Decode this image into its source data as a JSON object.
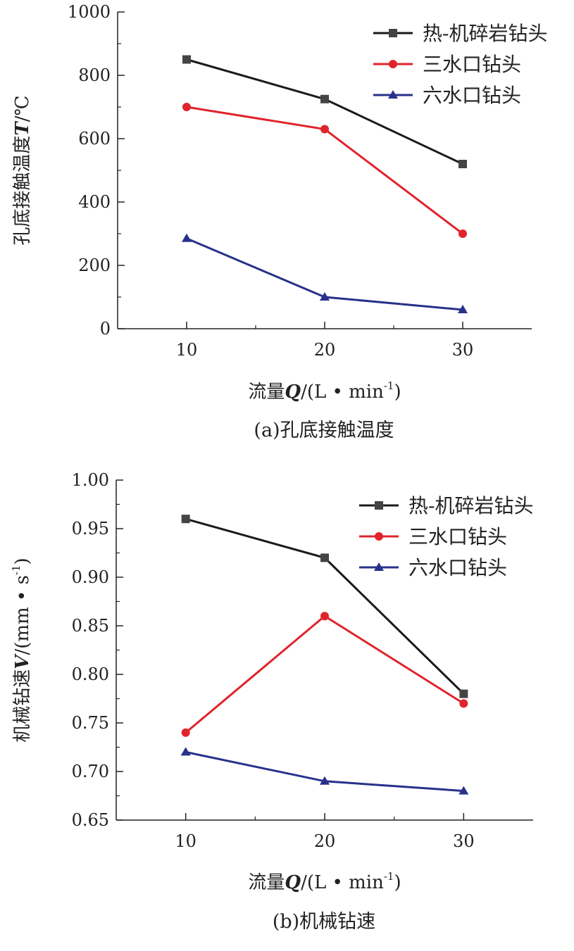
{
  "chart_data": [
    {
      "type": "line",
      "caption": "(a)孔底接触温度",
      "xlabel_prefix": "流量",
      "xlabel_var": "Q",
      "xlabel_unit": "/(L • min",
      "xlabel_exp": "-1",
      "xlabel_close": ")",
      "ylabel_prefix": "孔底接触温度",
      "ylabel_var": "T",
      "ylabel_unit": "/℃",
      "x": [
        10,
        20,
        30
      ],
      "xlim": [
        5,
        35
      ],
      "ylim": [
        0,
        1000
      ],
      "xticks": [
        "10",
        "20",
        "30"
      ],
      "yticks": [
        "0",
        "200",
        "400",
        "600",
        "800",
        "1000"
      ],
      "legend_position": "top-right",
      "series": [
        {
          "name": "热-机碎岩钻头",
          "values": [
            850,
            725,
            520
          ],
          "color": "#1a1a1a",
          "marker": "square"
        },
        {
          "name": "三水口钻头",
          "values": [
            700,
            630,
            300
          ],
          "color": "#e0242c",
          "marker": "circle"
        },
        {
          "name": "六水口钻头",
          "values": [
            285,
            100,
            60
          ],
          "color": "#28318a",
          "marker": "triangle"
        }
      ]
    },
    {
      "type": "line",
      "caption": "(b)机械钻速",
      "xlabel_prefix": "流量",
      "xlabel_var": "Q",
      "xlabel_unit": "/(L • min",
      "xlabel_exp": "-1",
      "xlabel_close": ")",
      "ylabel_prefix": "机械钻速",
      "ylabel_var": "V",
      "ylabel_unit": "/(mm • s",
      "ylabel_exp": "-1",
      "ylabel_close": ")",
      "x": [
        10,
        20,
        30
      ],
      "xlim": [
        5,
        35
      ],
      "ylim": [
        0.65,
        1.0
      ],
      "xticks": [
        "10",
        "20",
        "30"
      ],
      "yticks": [
        "0.65",
        "0.70",
        "0.75",
        "0.80",
        "0.85",
        "0.90",
        "0.95",
        "1.00"
      ],
      "legend_position": "top-right",
      "series": [
        {
          "name": "热-机碎岩钻头",
          "values": [
            0.96,
            0.92,
            0.78
          ],
          "color": "#1a1a1a",
          "marker": "square"
        },
        {
          "name": "三水口钻头",
          "values": [
            0.74,
            0.86,
            0.77
          ],
          "color": "#e0242c",
          "marker": "circle"
        },
        {
          "name": "六水口钻头",
          "values": [
            0.72,
            0.69,
            0.68
          ],
          "color": "#28318a",
          "marker": "triangle"
        }
      ]
    }
  ]
}
